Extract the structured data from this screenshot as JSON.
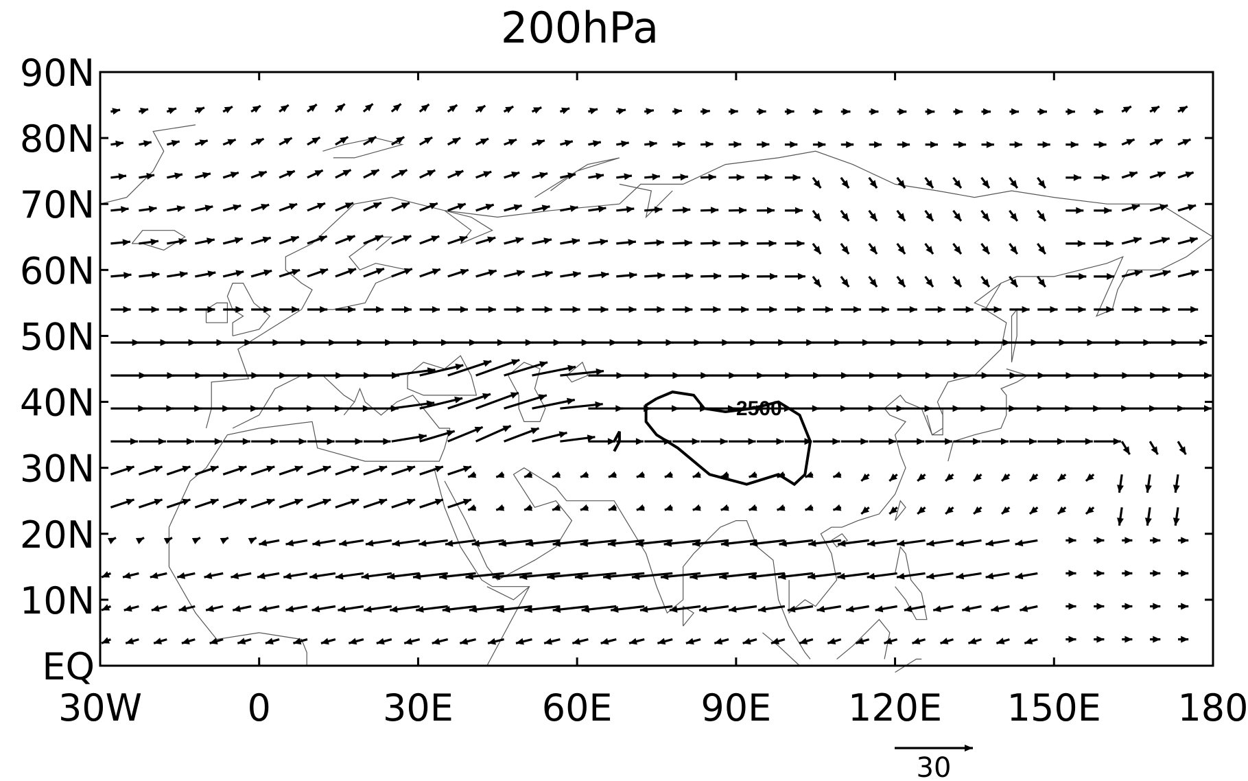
{
  "title": "200hPa",
  "axes": {
    "lon_ticks": [
      {
        "value": -30,
        "label": "30W"
      },
      {
        "value": 0,
        "label": "0"
      },
      {
        "value": 30,
        "label": "30E"
      },
      {
        "value": 60,
        "label": "60E"
      },
      {
        "value": 90,
        "label": "90E"
      },
      {
        "value": 120,
        "label": "120E"
      },
      {
        "value": 150,
        "label": "150E"
      },
      {
        "value": 180,
        "label": "180"
      }
    ],
    "lat_ticks": [
      {
        "value": 0,
        "label": "EQ"
      },
      {
        "value": 10,
        "label": "10N"
      },
      {
        "value": 20,
        "label": "20N"
      },
      {
        "value": 30,
        "label": "30N"
      },
      {
        "value": 40,
        "label": "40N"
      },
      {
        "value": 50,
        "label": "50N"
      },
      {
        "value": 60,
        "label": "60N"
      },
      {
        "value": 70,
        "label": "70N"
      },
      {
        "value": 80,
        "label": "80N"
      },
      {
        "value": 90,
        "label": "90N"
      }
    ],
    "lon_range": [
      -30,
      180
    ],
    "lat_range": [
      0,
      90
    ]
  },
  "contour": {
    "label": "2500",
    "label_at": {
      "lon": 90,
      "lat": 39
    }
  },
  "reference_vector": {
    "magnitude": 30,
    "label": "30"
  },
  "chart_data": {
    "type": "vector field",
    "title": "200hPa",
    "xlabel": "",
    "ylabel": "",
    "xlim": [
      -30,
      180
    ],
    "ylim": [
      0,
      90
    ],
    "vector_units_per_degree": 1.0,
    "reference_magnitude": 30,
    "contour_value": 2500
  }
}
